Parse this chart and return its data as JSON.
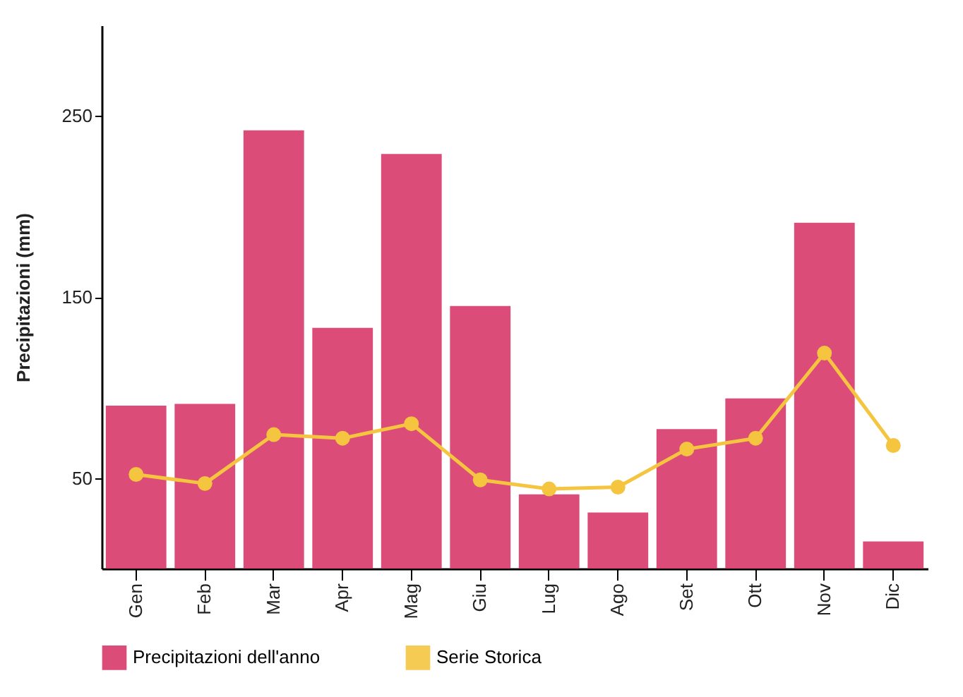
{
  "chart_data": {
    "type": "bar",
    "ylabel": "Precipitazioni (mm)",
    "categories": [
      "Gen",
      "Feb",
      "Mar",
      "Apr",
      "Mag",
      "Giu",
      "Lug",
      "Ago",
      "Set",
      "Ott",
      "Nov",
      "Dic"
    ],
    "series": [
      {
        "name": "Precipitazioni dell'anno",
        "color": "#d8386a",
        "values": [
          90,
          91,
          242,
          133,
          229,
          145,
          41,
          31,
          77,
          94,
          191,
          15
        ]
      },
      {
        "name": "Serie Storica",
        "type": "line",
        "color": "#f5c540",
        "values": [
          52,
          47,
          74,
          72,
          80,
          49,
          44,
          45,
          66,
          72,
          119,
          68
        ]
      }
    ],
    "ylim": [
      0,
      300
    ],
    "yticks": [
      50,
      150,
      250
    ],
    "grid": false,
    "legend": "bottom",
    "marker": "circle"
  }
}
